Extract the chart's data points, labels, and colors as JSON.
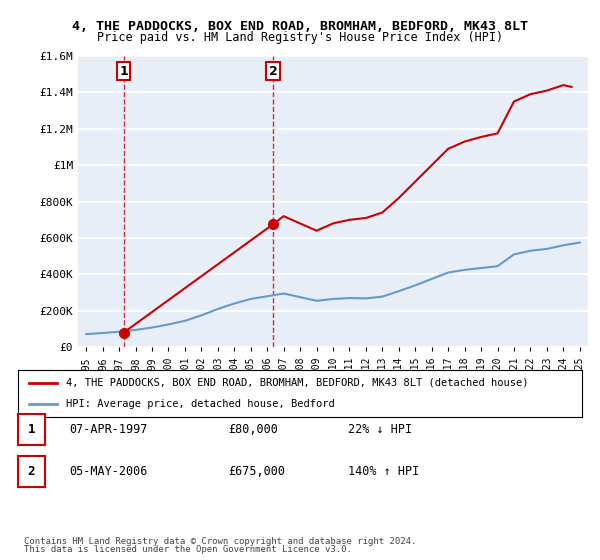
{
  "title1": "4, THE PADDOCKS, BOX END ROAD, BROMHAM, BEDFORD, MK43 8LT",
  "title2": "Price paid vs. HM Land Registry's House Price Index (HPI)",
  "legend_line1": "4, THE PADDOCKS, BOX END ROAD, BROMHAM, BEDFORD, MK43 8LT (detached house)",
  "legend_line2": "HPI: Average price, detached house, Bedford",
  "footer1": "Contains HM Land Registry data © Crown copyright and database right 2024.",
  "footer2": "This data is licensed under the Open Government Licence v3.0.",
  "table": [
    {
      "num": "1",
      "date": "07-APR-1997",
      "price": "£80,000",
      "hpi": "22% ↓ HPI"
    },
    {
      "num": "2",
      "date": "05-MAY-2006",
      "price": "£675,000",
      "hpi": "140% ↑ HPI"
    }
  ],
  "hpi_years": [
    1995,
    1996,
    1997,
    1998,
    1999,
    2000,
    2001,
    2002,
    2003,
    2004,
    2005,
    2006,
    2007,
    2008,
    2009,
    2010,
    2011,
    2012,
    2013,
    2014,
    2015,
    2016,
    2017,
    2018,
    2019,
    2020,
    2021,
    2022,
    2023,
    2024,
    2025
  ],
  "hpi_values": [
    72000,
    78000,
    85000,
    95000,
    108000,
    125000,
    145000,
    175000,
    210000,
    240000,
    265000,
    280000,
    295000,
    275000,
    255000,
    265000,
    270000,
    268000,
    278000,
    308000,
    340000,
    375000,
    410000,
    425000,
    435000,
    445000,
    510000,
    530000,
    540000,
    560000,
    575000
  ],
  "property_years": [
    1997.27,
    2006.35,
    2007,
    2008,
    2009,
    2010,
    2011,
    2012,
    2013,
    2014,
    2015,
    2016,
    2017,
    2018,
    2019,
    2020,
    2021,
    2022,
    2023,
    2024,
    2024.5
  ],
  "property_values": [
    80000,
    675000,
    720000,
    680000,
    640000,
    680000,
    700000,
    710000,
    740000,
    820000,
    910000,
    1000000,
    1090000,
    1130000,
    1155000,
    1175000,
    1350000,
    1390000,
    1410000,
    1440000,
    1430000
  ],
  "purchase1_year": 1997.27,
  "purchase1_price": 80000,
  "purchase2_year": 2006.35,
  "purchase2_price": 675000,
  "ylim": [
    0,
    1600000
  ],
  "xlim_left": 1994.5,
  "xlim_right": 2025.5,
  "background_color": "#e8eef8",
  "plot_bg_color": "#e8eef8",
  "red_color": "#cc0000",
  "blue_color": "#6699cc",
  "grid_color": "#ffffff"
}
